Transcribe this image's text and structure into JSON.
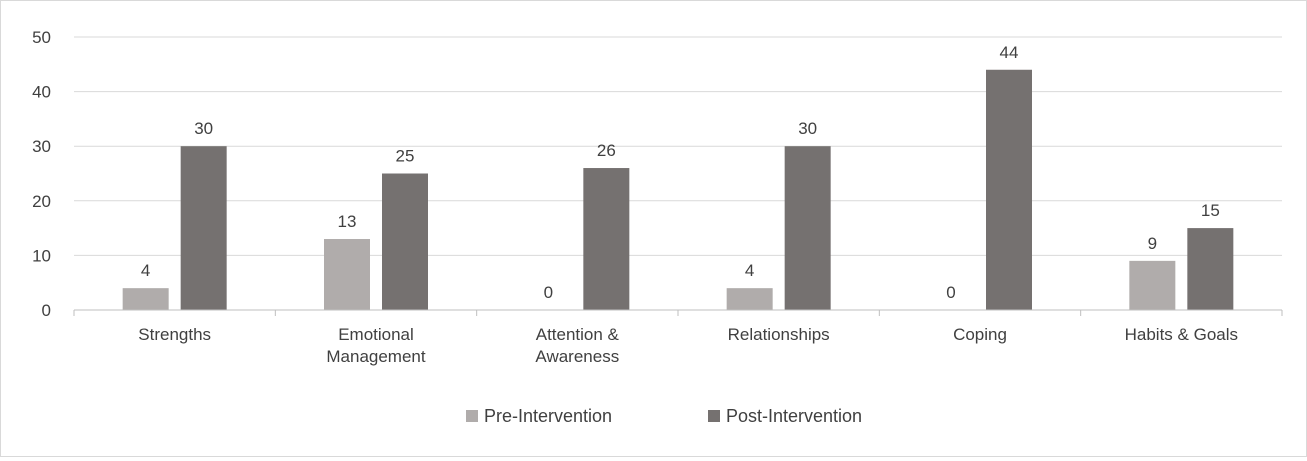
{
  "chart_data": {
    "type": "bar",
    "categories": [
      [
        "Strengths"
      ],
      [
        "Emotional",
        "Management"
      ],
      [
        "Attention &",
        "Awareness"
      ],
      [
        "Relationships"
      ],
      [
        "Coping"
      ],
      [
        "Habits & Goals"
      ]
    ],
    "series": [
      {
        "name": "Pre-Intervention",
        "values": [
          4,
          13,
          0,
          4,
          0,
          9
        ],
        "color": "#b0acab"
      },
      {
        "name": "Post-Intervention",
        "values": [
          30,
          25,
          26,
          30,
          44,
          15
        ],
        "color": "#757170"
      }
    ],
    "ylim": [
      0,
      50
    ],
    "yticks": [
      0,
      10,
      20,
      30,
      40,
      50
    ],
    "grid": true,
    "legend": "bottom"
  }
}
